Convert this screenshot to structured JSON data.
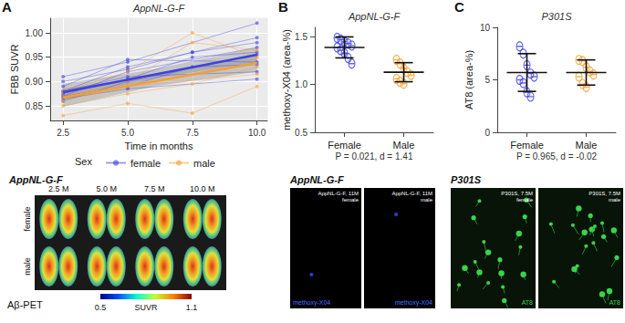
{
  "chart_data": [
    {
      "panel": "A",
      "type": "line",
      "title": "AppNL-G-F",
      "x_label": "Time in months",
      "y_label": "FBB SUVR",
      "xlim": [
        2,
        10.4
      ],
      "xticks": [
        2.5,
        {
          "value": 5,
          "label": "5.0"
        },
        7.5,
        {
          "value": 10,
          "label": "10.0"
        }
      ],
      "ylim": [
        0.82,
        1.03
      ],
      "yticks": [
        0.85,
        {
          "value": 0.9,
          "label": "0.90"
        },
        0.95,
        {
          "value": 1,
          "label": "1.00"
        }
      ],
      "grid": true,
      "legend": "bottom",
      "legend_title": "Sex",
      "marker": "circle",
      "series": [
        {
          "name": "female",
          "color": "#4040e0",
          "trend": {
            "x": [
              2.5,
              10
            ],
            "values": [
              0.878,
              0.955
            ]
          },
          "ci": {
            "x": [
              2.5,
              6,
              10
            ],
            "lower": [
              0.862,
              0.906,
              0.94
            ],
            "upper": [
              0.895,
              0.925,
              0.97
            ]
          },
          "animals": [
            {
              "x": [
                2.5,
                5,
                10
              ],
              "values": [
                0.91,
                0.94,
                1.02
              ]
            },
            {
              "x": [
                2.5,
                5,
                7.5,
                10
              ],
              "values": [
                0.88,
                0.93,
                0.96,
                0.98
              ]
            },
            {
              "x": [
                2.5,
                5,
                10
              ],
              "values": [
                0.87,
                0.92,
                0.97
              ]
            },
            {
              "x": [
                2.5,
                5,
                7.5,
                10
              ],
              "values": [
                0.875,
                0.905,
                0.95,
                0.96
              ]
            },
            {
              "x": [
                2.5,
                5,
                10
              ],
              "values": [
                0.86,
                0.9,
                0.955
              ]
            },
            {
              "x": [
                2.5,
                5,
                10
              ],
              "values": [
                0.89,
                0.945,
                0.94
              ]
            },
            {
              "x": [
                2.5,
                5,
                7.5,
                10
              ],
              "values": [
                0.87,
                0.89,
                0.93,
                0.935
              ]
            },
            {
              "x": [
                2.5,
                5,
                10
              ],
              "values": [
                0.88,
                0.91,
                0.92
              ]
            },
            {
              "x": [
                2.5,
                5,
                10
              ],
              "values": [
                0.865,
                0.885,
                0.905
              ]
            },
            {
              "x": [
                2.5,
                5,
                7.5,
                10
              ],
              "values": [
                0.9,
                0.925,
                0.96,
                0.99
              ]
            }
          ]
        },
        {
          "name": "male",
          "color": "#f5a031",
          "trend": {
            "x": [
              2.5,
              10
            ],
            "values": [
              0.867,
              0.938
            ]
          },
          "ci": {
            "x": [
              2.5,
              6,
              10
            ],
            "lower": [
              0.848,
              0.89,
              0.92
            ],
            "upper": [
              0.885,
              0.91,
              0.955
            ]
          },
          "animals": [
            {
              "x": [
                2.5,
                5,
                7.5,
                10
              ],
              "values": [
                0.83,
                0.855,
                0.835,
                0.89
              ]
            },
            {
              "x": [
                2.5,
                5,
                7.5,
                10
              ],
              "values": [
                0.85,
                0.875,
                0.895,
                0.93
              ]
            },
            {
              "x": [
                2.5,
                5,
                7.5,
                10
              ],
              "values": [
                0.87,
                0.9,
                0.98,
                0.965
              ]
            },
            {
              "x": [
                2.5,
                5,
                7.5,
                10
              ],
              "values": [
                0.88,
                0.92,
                1.0,
                0.95
              ]
            },
            {
              "x": [
                2.5,
                5,
                10
              ],
              "values": [
                0.86,
                0.89,
                0.915
              ]
            }
          ]
        }
      ]
    },
    {
      "panel": "B",
      "type": "dot",
      "title": "AppNL-G-F",
      "y_label": "methoxy-X04 (area-%)",
      "categories": [
        "Female",
        "Male"
      ],
      "ylim": [
        0.5,
        1.6
      ],
      "yticks": [
        0.5,
        {
          "value": 1,
          "label": "1.0"
        },
        1.5
      ],
      "grid": false,
      "marker": "theta",
      "annotation": "P = 0.021, d = 1.41",
      "groups": [
        {
          "color": "#4040e0",
          "values": [
            1.49,
            1.47,
            1.45,
            1.43,
            1.41,
            1.39,
            1.36,
            1.33,
            1.28,
            1.22
          ],
          "mean": 1.39,
          "sd": 0.11
        },
        {
          "color": "#f5a031",
          "values": [
            1.26,
            1.22,
            1.17,
            1.13,
            1.1,
            1.06,
            1.03,
            1.01
          ],
          "mean": 1.13,
          "sd": 0.1
        }
      ]
    },
    {
      "panel": "C",
      "type": "dot",
      "title": "P301S",
      "y_label": "AT8 (area-%)",
      "categories": [
        "Female",
        "Male"
      ],
      "ylim": [
        0,
        10
      ],
      "yticks": [
        0,
        5,
        10
      ],
      "grid": false,
      "marker": "theta",
      "annotation": "P = 0.965, d = -0.02",
      "groups": [
        {
          "color": "#4040e0",
          "values": [
            8.2,
            7.5,
            6.4,
            5.6,
            5.3,
            5.0,
            4.7,
            3.8,
            3.4
          ],
          "mean": 5.7,
          "sd": 1.8
        },
        {
          "color": "#f5a031",
          "values": [
            6.9,
            6.8,
            6.2,
            5.8,
            5.5,
            5.3,
            4.6,
            4.3
          ],
          "mean": 5.7,
          "sd": 1.2
        }
      ]
    }
  ],
  "image_panels": {
    "pet": {
      "title": "AppNL-G-F",
      "times": [
        "2.5 M",
        "5.0 M",
        "7.5 M",
        "10.0 M"
      ],
      "rows": [
        "female",
        "male"
      ],
      "label": "Aβ-PET",
      "colorbar": {
        "range": [
          0.5,
          1.1
        ],
        "title": "SUVR"
      }
    },
    "methoxy": {
      "title": "AppNL-G-F",
      "stain": "methoxy-X04",
      "images": [
        {
          "caption": "AppNL-G-F, 11M",
          "sex": "female"
        },
        {
          "caption": "AppNL-G-F, 11M",
          "sex": "male"
        }
      ]
    },
    "at8": {
      "title": "P301S",
      "stain": "AT8",
      "images": [
        {
          "caption": "P301S, 7.5M",
          "sex": "female"
        },
        {
          "caption": "P301S, 7.5M",
          "sex": "male"
        }
      ]
    }
  }
}
